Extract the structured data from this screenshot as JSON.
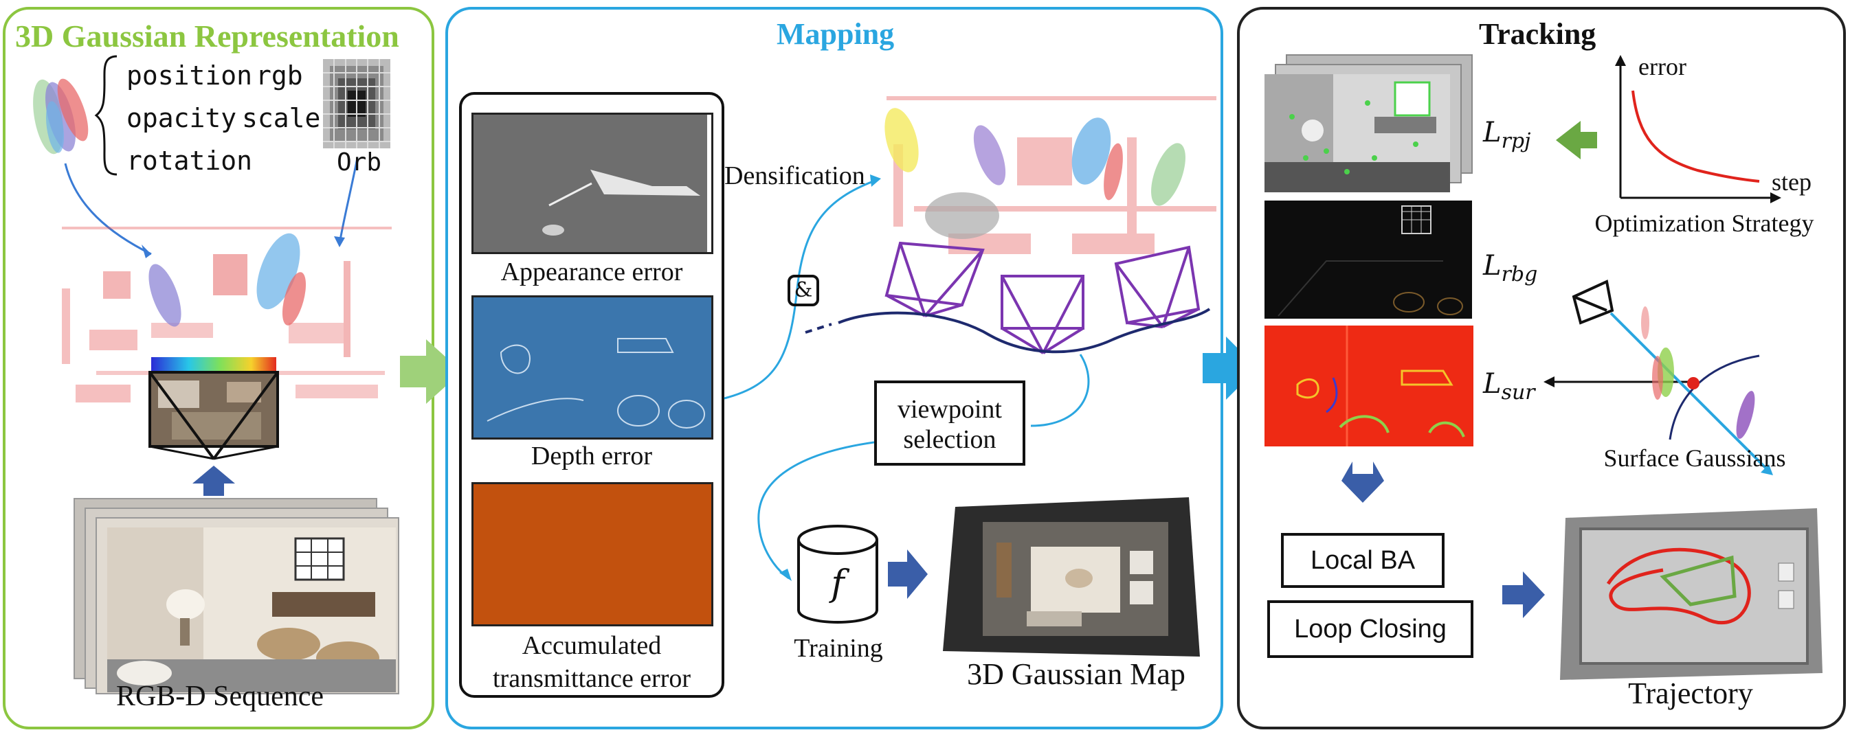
{
  "representation": {
    "title": "3D Gaussian Representation",
    "attrs": [
      "position",
      "rgb",
      "opacity",
      "scale",
      "rotation"
    ],
    "orb_label": "Orb",
    "sequence_label": "RGB-D Sequence"
  },
  "mapping": {
    "title": "Mapping",
    "error_maps": [
      "Appearance error",
      "Depth error",
      "Accumulated",
      "transmittance error"
    ],
    "densification_label": "Densification",
    "symbol": "&",
    "viewpoint_line1": "viewpoint",
    "viewpoint_line2": "selection",
    "training_symbol": "f",
    "training_label": "Training",
    "map_label": "3D Gaussian Map"
  },
  "tracking": {
    "title": "Tracking",
    "losses": [
      {
        "base": "L",
        "sub": "rpj"
      },
      {
        "base": "L",
        "sub": "rbg"
      },
      {
        "base": "L",
        "sub": "sur"
      }
    ],
    "error_axis": "error",
    "step_axis": "step",
    "strategy_label": "Optimization Strategy",
    "surface_label": "Surface Gaussians",
    "local_ba": "Local BA",
    "loop_closing": "Loop Closing",
    "trajectory_label": "Trajectory"
  },
  "colors": {
    "representation_border": "#8cc640",
    "mapping_border": "#2aa6e0",
    "tracking_border": "#222222",
    "flow_arrow": "#3a5ea8",
    "green_arrow": "#6aa843",
    "cyan_line": "#2aa6e0",
    "camera_purple": "#7b35b0",
    "appearance_bg": "#6e6e6e",
    "depth_bg": "#3b76ad",
    "transmittance_bg": "#c2510e",
    "rbg_bg": "#0d0d0d",
    "sur_bg": "#ee2a14",
    "curve_red": "#e0231c"
  }
}
